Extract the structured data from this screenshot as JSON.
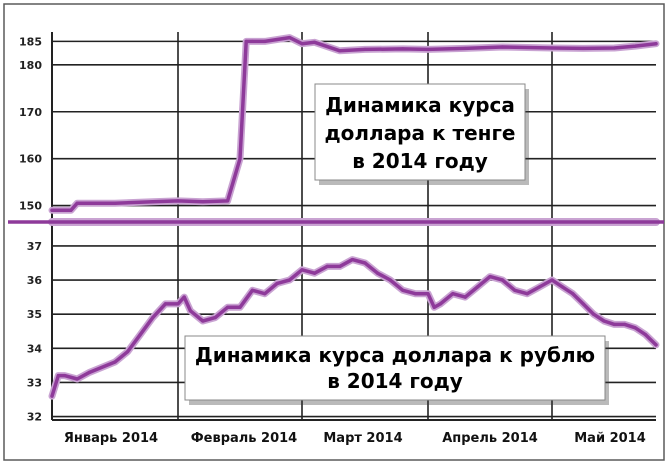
{
  "colors": {
    "line": "#8e3a9a",
    "line_glow": "#c9a3d2",
    "grid": "#222222",
    "frame": "#5a5a5a"
  },
  "chart_data": [
    {
      "type": "line",
      "title_lines": [
        "Динамика курса",
        "доллара к тенге",
        "в 2014 году"
      ],
      "y_ticks": [
        150,
        160,
        170,
        180,
        185
      ],
      "ylim": [
        146.5,
        187
      ],
      "x_ticks": [
        "Январь 2014",
        "Февраль 2014",
        "Март 2014",
        "Апрель 2014",
        "Май 2014"
      ],
      "xlim": [
        0,
        5
      ],
      "grid": true,
      "series": [
        {
          "x": [
            0.0,
            0.15,
            0.2,
            0.3,
            0.5,
            0.8,
            1.0,
            1.2,
            1.4,
            1.5,
            1.55,
            1.6,
            1.7,
            1.9,
            2.0,
            2.1,
            2.3,
            2.5,
            2.8,
            3.0,
            3.3,
            3.6,
            4.0,
            4.3,
            4.6,
            4.8,
            5.0
          ],
          "y": [
            149,
            149,
            150.5,
            150.5,
            150.5,
            150.8,
            151,
            150.8,
            151,
            160,
            185,
            185,
            185,
            185.8,
            184.5,
            184.8,
            183,
            183.3,
            183.4,
            183.3,
            183.5,
            183.8,
            183.6,
            183.5,
            183.6,
            184,
            184.5
          ]
        }
      ]
    },
    {
      "type": "line",
      "title_lines": [
        "Динамика курса  доллара к рублю",
        "в 2014 году"
      ],
      "y_ticks": [
        32,
        33,
        34,
        35,
        36,
        37
      ],
      "ylim": [
        31.9,
        37.7
      ],
      "x_ticks": [
        "Январь 2014",
        "Февраль 2014",
        "Март 2014",
        "Апрель 2014",
        "Май 2014"
      ],
      "xlim": [
        0,
        5
      ],
      "grid": true,
      "series": [
        {
          "x": [
            0.0,
            0.05,
            0.1,
            0.2,
            0.3,
            0.5,
            0.6,
            0.7,
            0.8,
            0.9,
            1.0,
            1.05,
            1.1,
            1.2,
            1.3,
            1.4,
            1.5,
            1.6,
            1.7,
            1.8,
            1.9,
            2.0,
            2.1,
            2.2,
            2.3,
            2.4,
            2.5,
            2.6,
            2.7,
            2.8,
            2.9,
            3.0,
            3.05,
            3.1,
            3.2,
            3.3,
            3.4,
            3.5,
            3.6,
            3.7,
            3.8,
            3.9,
            4.0,
            4.1,
            4.2,
            4.3,
            4.4,
            4.5,
            4.6,
            4.7,
            4.8,
            4.9,
            5.0
          ],
          "y": [
            32.6,
            33.2,
            33.2,
            33.1,
            33.3,
            33.6,
            33.9,
            34.4,
            34.9,
            35.3,
            35.3,
            35.5,
            35.1,
            34.8,
            34.9,
            35.2,
            35.2,
            35.7,
            35.6,
            35.9,
            36.0,
            36.3,
            36.2,
            36.4,
            36.4,
            36.6,
            36.5,
            36.2,
            36.0,
            35.7,
            35.6,
            35.6,
            35.2,
            35.3,
            35.6,
            35.5,
            35.8,
            36.1,
            36.0,
            35.7,
            35.6,
            35.8,
            36.0,
            35.8,
            35.6,
            35.3,
            35.0,
            34.8,
            34.7,
            34.7,
            34.6,
            34.4,
            34.1
          ]
        }
      ]
    }
  ]
}
